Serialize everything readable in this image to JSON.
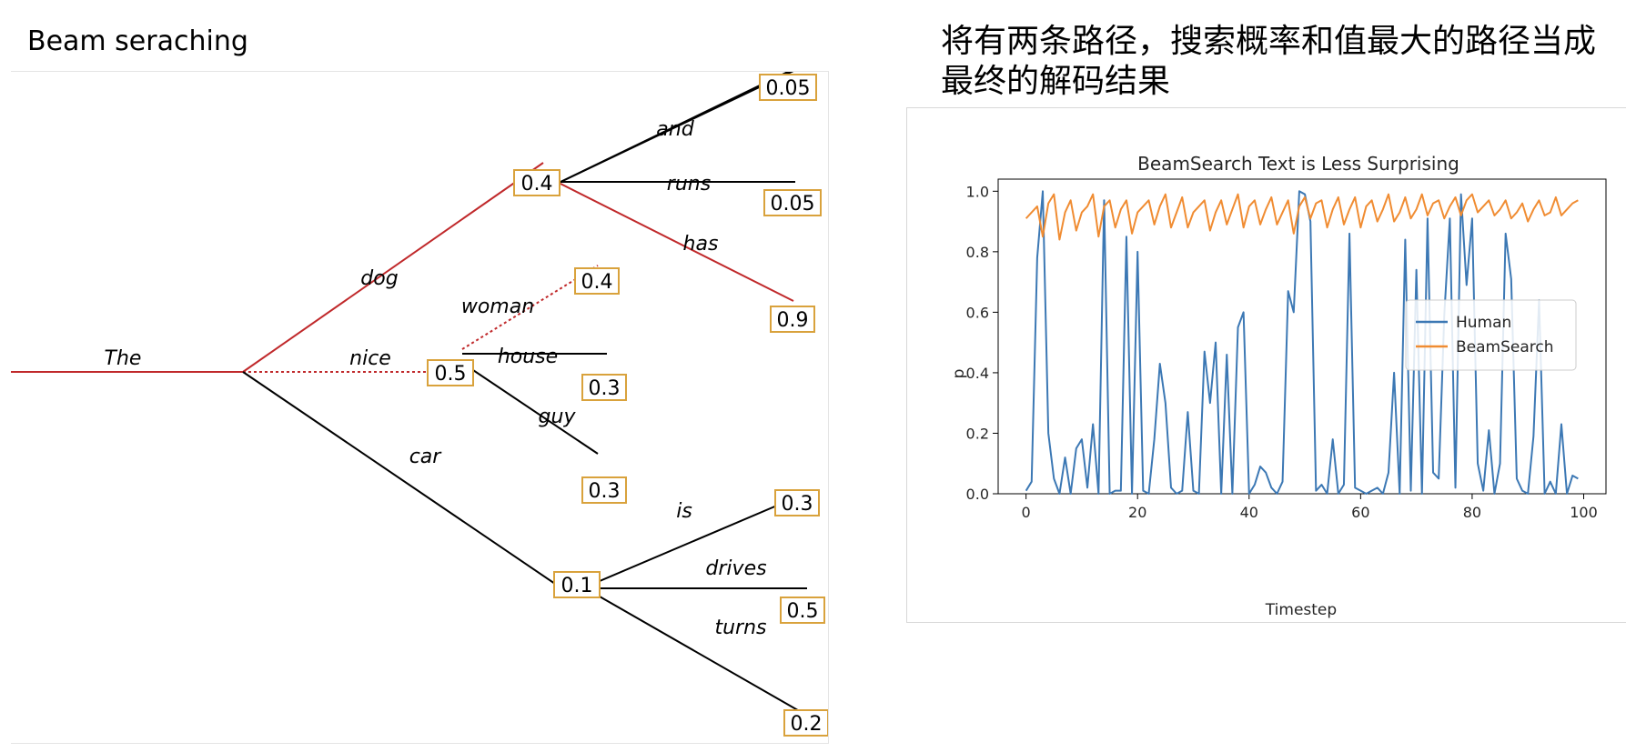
{
  "left_title": "Beam seraching",
  "right_title": "将有两条路径，搜索概率和值最大的路径当成最终的解码结果",
  "colors": {
    "selected_path": "#c0292b",
    "normal_path": "#000000",
    "box_border": "#d9a23c",
    "human": "#3c78b4",
    "beamsearch": "#f08c32"
  },
  "tree": {
    "nodes": [
      {
        "id": "dog_node",
        "value": "0.4"
      },
      {
        "id": "nice_node",
        "value": "0.5"
      },
      {
        "id": "car_node",
        "value": "0.1"
      },
      {
        "id": "and_leaf",
        "value": "0.05"
      },
      {
        "id": "runs_leaf",
        "value": "0.05"
      },
      {
        "id": "has_leaf",
        "value": "0.9"
      },
      {
        "id": "woman_leaf",
        "value": "0.4"
      },
      {
        "id": "house_leaf",
        "value": "0.3"
      },
      {
        "id": "guy_leaf",
        "value": "0.3"
      },
      {
        "id": "is_leaf",
        "value": "0.3"
      },
      {
        "id": "drives_leaf",
        "value": "0.5"
      },
      {
        "id": "turns_leaf",
        "value": "0.2"
      }
    ],
    "words": {
      "the": "The",
      "dog": "dog",
      "nice": "nice",
      "car": "car",
      "and": "and",
      "runs": "runs",
      "has": "has",
      "woman": "woman",
      "house": "house",
      "guy": "guy",
      "is": "is",
      "drives": "drives",
      "turns": "turns"
    },
    "selected_path": [
      "The",
      "dog",
      "has"
    ],
    "dotted_path": [
      "nice",
      "woman"
    ]
  },
  "chart_data": {
    "type": "line",
    "title": "BeamSearch Text is Less Surprising",
    "xlabel": "Timestep",
    "ylabel": "p",
    "xlim": [
      -5,
      104
    ],
    "ylim": [
      0,
      1.04
    ],
    "xticks": [
      0,
      20,
      40,
      60,
      80,
      100
    ],
    "yticks": [
      0.0,
      0.2,
      0.4,
      0.6,
      0.8,
      1.0
    ],
    "legend_position": "center-right",
    "grid": false,
    "series": [
      {
        "name": "Human",
        "color": "#3c78b4",
        "values": [
          0.01,
          0.04,
          0.78,
          1.0,
          0.2,
          0.05,
          0.0,
          0.12,
          0.0,
          0.15,
          0.18,
          0.02,
          0.23,
          0.0,
          0.97,
          0.0,
          0.01,
          0.01,
          0.85,
          0.0,
          0.8,
          0.01,
          0.0,
          0.18,
          0.43,
          0.3,
          0.02,
          0.0,
          0.01,
          0.27,
          0.01,
          0.0,
          0.47,
          0.3,
          0.5,
          0.0,
          0.46,
          0.0,
          0.55,
          0.6,
          0.0,
          0.03,
          0.09,
          0.07,
          0.02,
          0.0,
          0.04,
          0.67,
          0.6,
          1.0,
          0.99,
          0.9,
          0.01,
          0.03,
          0.0,
          0.18,
          0.0,
          0.03,
          0.86,
          0.02,
          0.01,
          0.0,
          0.01,
          0.02,
          0.0,
          0.07,
          0.4,
          0.0,
          0.84,
          0.01,
          0.74,
          0.0,
          0.91,
          0.07,
          0.05,
          0.59,
          0.91,
          0.02,
          0.99,
          0.69,
          0.91,
          0.1,
          0.01,
          0.21,
          0.0,
          0.1,
          0.86,
          0.71,
          0.05,
          0.01,
          0.0,
          0.19,
          0.64,
          0.0,
          0.04,
          0.0,
          0.23,
          0.0,
          0.06,
          0.05
        ]
      },
      {
        "name": "BeamSearch",
        "color": "#f08c32",
        "values": [
          0.91,
          0.93,
          0.95,
          0.85,
          0.96,
          0.99,
          0.84,
          0.93,
          0.97,
          0.87,
          0.93,
          0.95,
          0.99,
          0.85,
          0.95,
          0.97,
          0.88,
          0.94,
          0.97,
          0.86,
          0.93,
          0.95,
          0.97,
          0.89,
          0.95,
          0.99,
          0.88,
          0.93,
          0.98,
          0.88,
          0.93,
          0.95,
          0.97,
          0.87,
          0.93,
          0.97,
          0.89,
          0.94,
          0.99,
          0.88,
          0.95,
          0.97,
          0.89,
          0.94,
          0.98,
          0.89,
          0.93,
          0.97,
          0.86,
          0.95,
          0.98,
          0.91,
          0.96,
          0.97,
          0.88,
          0.94,
          0.98,
          0.89,
          0.94,
          0.98,
          0.88,
          0.95,
          0.97,
          0.9,
          0.94,
          0.99,
          0.9,
          0.93,
          0.98,
          0.91,
          0.94,
          0.99,
          0.92,
          0.96,
          0.97,
          0.91,
          0.95,
          0.98,
          0.92,
          0.97,
          0.99,
          0.93,
          0.95,
          0.97,
          0.92,
          0.94,
          0.97,
          0.91,
          0.93,
          0.96,
          0.9,
          0.94,
          0.97,
          0.92,
          0.93,
          0.98,
          0.92,
          0.94,
          0.96,
          0.97
        ]
      }
    ]
  }
}
